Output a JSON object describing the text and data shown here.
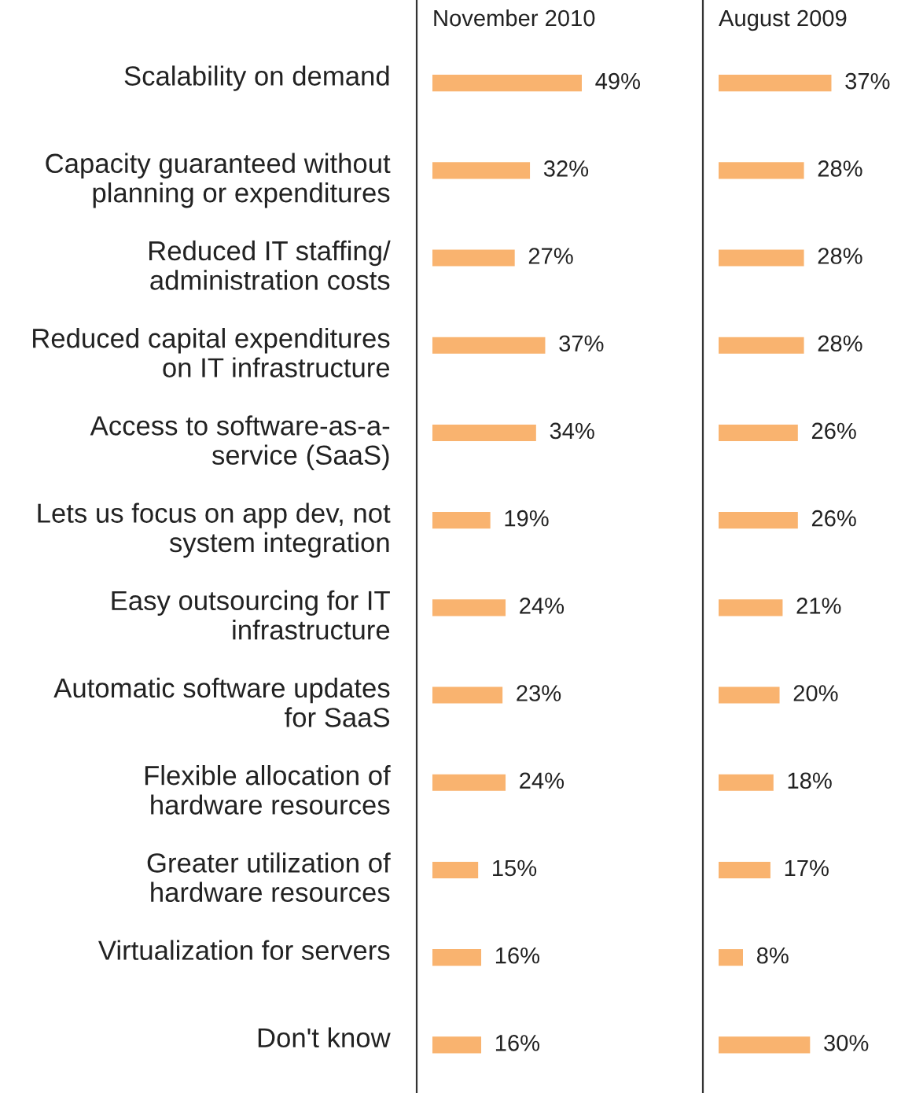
{
  "chart_data": [
    {
      "type": "bar",
      "orientation": "horizontal",
      "title": "November 2010",
      "tick_labels": "y",
      "categories": [
        "Scalability on demand",
        "Capacity guaranteed without\nplanning or expenditures",
        "Reduced IT staffing/\nadministration costs",
        "Reduced capital expenditures\non IT infrastructure",
        "Access to software-as-a-\nservice (SaaS)",
        "Lets us focus on app dev, not\nsystem integration",
        "Easy outsourcing for IT\ninfrastructure",
        "Automatic software updates\nfor SaaS",
        "Flexible allocation of\nhardware resources",
        "Greater utilization of\nhardware resources",
        "Virtualization for servers",
        "Don't know"
      ],
      "series": [
        {
          "color": "#f9b36f",
          "values": [
            49,
            32,
            27,
            37,
            34,
            19,
            24,
            23,
            24,
            15,
            16,
            16
          ],
          "value_labels": [
            "49%",
            "32%",
            "27%",
            "37%",
            "34%",
            "19%",
            "24%",
            "23%",
            "24%",
            "15%",
            "16%",
            "16%"
          ]
        }
      ],
      "grid": false,
      "legend": false
    },
    {
      "type": "bar",
      "orientation": "horizontal",
      "title": "August 2009",
      "tick_labels": false,
      "categories": [
        null,
        null,
        null,
        null,
        null,
        null,
        null,
        null,
        null,
        null,
        null,
        null
      ],
      "series": [
        {
          "color": "#f9b36f",
          "values": [
            37,
            28,
            28,
            28,
            26,
            26,
            21,
            20,
            18,
            17,
            8,
            30
          ],
          "value_labels": [
            "37%",
            "28%",
            "28%",
            "28%",
            "26%",
            "26%",
            "21%",
            "20%",
            "18%",
            "17%",
            "8%",
            "30%"
          ]
        }
      ],
      "grid": false,
      "legend": false
    }
  ]
}
